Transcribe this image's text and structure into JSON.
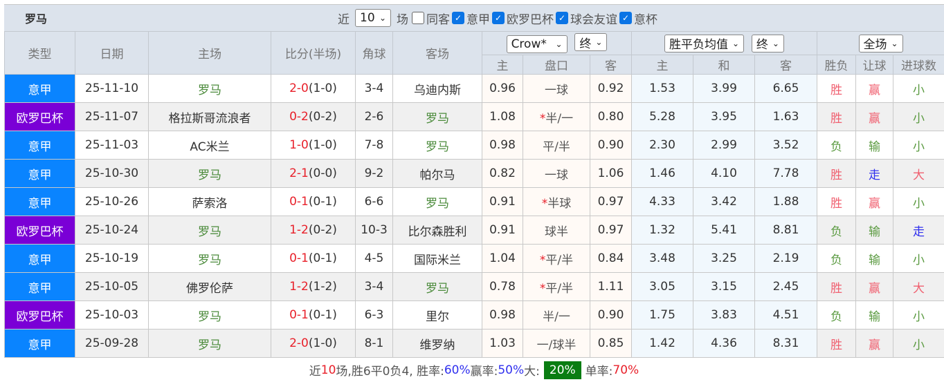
{
  "title": {
    "team": "罗马",
    "near": "近",
    "count": "10",
    "field": "场",
    "options": [
      {
        "label": "同客",
        "checked": false
      },
      {
        "label": "意甲",
        "checked": true
      },
      {
        "label": "欧罗巴杯",
        "checked": true
      },
      {
        "label": "球会友谊",
        "checked": true
      },
      {
        "label": "意杯",
        "checked": true
      }
    ]
  },
  "header": {
    "type": "类型",
    "date": "日期",
    "home": "主场",
    "score": "比分(半场)",
    "corner": "角球",
    "away": "客场",
    "company": "Crow*",
    "stage1": "终",
    "avg": "胜平负均值",
    "stage2": "终",
    "scope": "全场",
    "sub": [
      "主",
      "盘口",
      "客",
      "主",
      "和",
      "客",
      "胜负",
      "让球",
      "进球数"
    ]
  },
  "colors": {
    "意甲": "#0a84ff",
    "欧罗巴杯": "#7a00d6"
  },
  "rows": [
    {
      "type": "意甲",
      "date": "25-11-10",
      "home": "罗马",
      "score": "2-0",
      "half": "(1-0)",
      "corner": "3-4",
      "away": "乌迪内斯",
      "h": "0.96",
      "star": "",
      "line": "一球",
      "a": "0.92",
      "w": "1.53",
      "d": "3.99",
      "l": "6.65",
      "r1": "胜",
      "r2": "赢",
      "r3": "小"
    },
    {
      "type": "欧罗巴杯",
      "date": "25-11-07",
      "home": "格拉斯哥流浪者",
      "score": "0-2",
      "half": "(0-2)",
      "corner": "2-6",
      "away": "罗马",
      "h": "1.08",
      "star": "*",
      "line": "半/一",
      "a": "0.80",
      "w": "5.28",
      "d": "3.95",
      "l": "1.63",
      "r1": "胜",
      "r2": "赢",
      "r3": "小"
    },
    {
      "type": "意甲",
      "date": "25-11-03",
      "home": "AC米兰",
      "score": "1-0",
      "half": "(1-0)",
      "corner": "7-8",
      "away": "罗马",
      "h": "0.98",
      "star": "",
      "line": "平/半",
      "a": "0.90",
      "w": "2.30",
      "d": "2.99",
      "l": "3.52",
      "r1": "负",
      "r2": "输",
      "r3": "小"
    },
    {
      "type": "意甲",
      "date": "25-10-30",
      "home": "罗马",
      "score": "2-1",
      "half": "(0-0)",
      "corner": "9-2",
      "away": "帕尔马",
      "h": "0.82",
      "star": "",
      "line": "一球",
      "a": "1.06",
      "w": "1.46",
      "d": "4.10",
      "l": "7.78",
      "r1": "胜",
      "r2": "走",
      "r3": "大"
    },
    {
      "type": "意甲",
      "date": "25-10-26",
      "home": "萨索洛",
      "score": "0-1",
      "half": "(0-1)",
      "corner": "6-6",
      "away": "罗马",
      "h": "0.91",
      "star": "*",
      "line": "半球",
      "a": "0.97",
      "w": "4.33",
      "d": "3.42",
      "l": "1.88",
      "r1": "胜",
      "r2": "赢",
      "r3": "小"
    },
    {
      "type": "欧罗巴杯",
      "date": "25-10-24",
      "home": "罗马",
      "score": "1-2",
      "half": "(0-2)",
      "corner": "10-3",
      "away": "比尔森胜利",
      "h": "0.91",
      "star": "",
      "line": "球半",
      "a": "0.97",
      "w": "1.32",
      "d": "5.41",
      "l": "8.81",
      "r1": "负",
      "r2": "输",
      "r3": "走"
    },
    {
      "type": "意甲",
      "date": "25-10-19",
      "home": "罗马",
      "score": "0-1",
      "half": "(0-1)",
      "corner": "4-5",
      "away": "国际米兰",
      "h": "1.04",
      "star": "*",
      "line": "平/半",
      "a": "0.84",
      "w": "3.48",
      "d": "3.25",
      "l": "2.19",
      "r1": "负",
      "r2": "输",
      "r3": "小"
    },
    {
      "type": "意甲",
      "date": "25-10-05",
      "home": "佛罗伦萨",
      "score": "1-2",
      "half": "(1-2)",
      "corner": "3-4",
      "away": "罗马",
      "h": "0.78",
      "star": "*",
      "line": "平/半",
      "a": "1.11",
      "w": "3.05",
      "d": "3.15",
      "l": "2.45",
      "r1": "胜",
      "r2": "赢",
      "r3": "大"
    },
    {
      "type": "欧罗巴杯",
      "date": "25-10-03",
      "home": "罗马",
      "score": "0-1",
      "half": "(0-1)",
      "corner": "6-3",
      "away": "里尔",
      "h": "0.98",
      "star": "",
      "line": "半/一",
      "a": "0.90",
      "w": "1.75",
      "d": "3.83",
      "l": "4.51",
      "r1": "负",
      "r2": "输",
      "r3": "小"
    },
    {
      "type": "意甲",
      "date": "25-09-28",
      "home": "罗马",
      "score": "2-0",
      "half": "(1-0)",
      "corner": "8-1",
      "away": "维罗纳",
      "h": "1.03",
      "star": "",
      "line": "一/球半",
      "a": "0.85",
      "w": "1.42",
      "d": "4.36",
      "l": "8.31",
      "r1": "胜",
      "r2": "赢",
      "r3": "小"
    }
  ],
  "footer": {
    "p1": "近",
    "n": "10",
    "p2": "场,胜6平0负4, 胜率:",
    "win": "60%",
    "p3": " 赢率:",
    "cover": "50%",
    "p4": " 大:",
    "big": "20%",
    "p5": "单率:",
    "odd": "70%"
  }
}
